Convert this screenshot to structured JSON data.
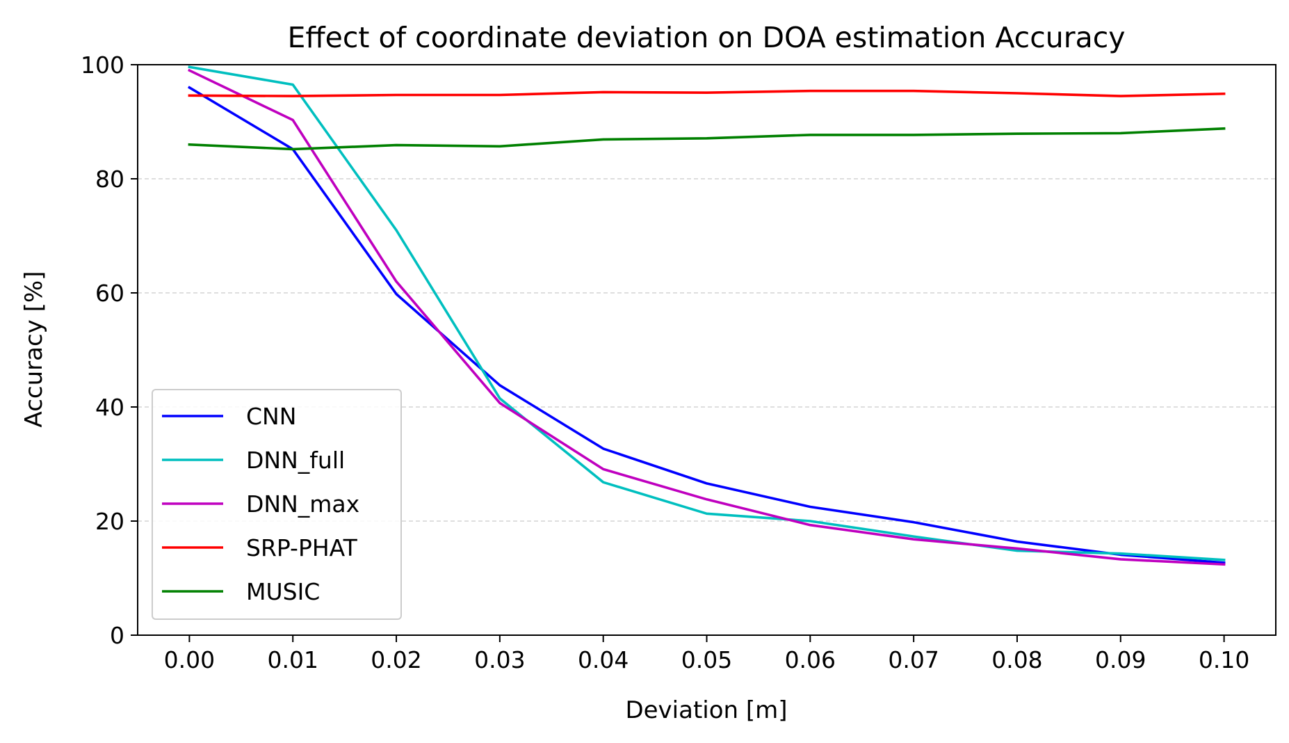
{
  "chart_data": {
    "type": "line",
    "title": "Effect of coordinate deviation on DOA estimation Accuracy",
    "xlabel": "Deviation [m]",
    "ylabel": "Accuracy [%]",
    "x": [
      0.0,
      0.01,
      0.02,
      0.03,
      0.04,
      0.05,
      0.06,
      0.07,
      0.08,
      0.09,
      0.1
    ],
    "x_tick_labels": [
      "0.00",
      "0.01",
      "0.02",
      "0.03",
      "0.04",
      "0.05",
      "0.06",
      "0.07",
      "0.08",
      "0.09",
      "0.10"
    ],
    "xlim": [
      -0.005,
      0.105
    ],
    "ylim": [
      0,
      100
    ],
    "y_ticks": [
      0,
      20,
      40,
      60,
      80,
      100
    ],
    "y_tick_labels": [
      "0",
      "20",
      "40",
      "60",
      "80",
      "100"
    ],
    "grid": "horizontal-dashed",
    "legend_position": "lower-left",
    "series": [
      {
        "name": "CNN",
        "color": "#0000ff",
        "values": [
          96.0,
          85.2,
          59.8,
          43.8,
          32.7,
          26.6,
          22.5,
          19.8,
          16.4,
          14.1,
          12.7
        ]
      },
      {
        "name": "DNN_full",
        "color": "#00bfbf",
        "values": [
          99.6,
          96.5,
          71.0,
          41.5,
          26.8,
          21.3,
          20.0,
          17.3,
          14.8,
          14.3,
          13.2
        ]
      },
      {
        "name": "DNN_max",
        "color": "#bf00bf",
        "values": [
          99.0,
          90.3,
          62.0,
          40.7,
          29.1,
          23.8,
          19.3,
          16.8,
          15.2,
          13.3,
          12.4
        ]
      },
      {
        "name": "SRP-PHAT",
        "color": "#ff0000",
        "values": [
          94.6,
          94.5,
          94.7,
          94.7,
          95.2,
          95.1,
          95.4,
          95.4,
          95.0,
          94.5,
          94.9
        ]
      },
      {
        "name": "MUSIC",
        "color": "#008000",
        "values": [
          86.0,
          85.2,
          85.9,
          85.7,
          86.9,
          87.1,
          87.7,
          87.7,
          87.9,
          88.0,
          88.8
        ]
      }
    ]
  }
}
